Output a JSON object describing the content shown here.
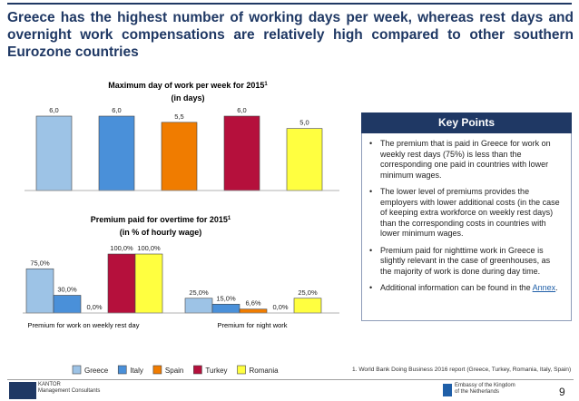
{
  "headline": "Greece has the highest number of working days per week, whereas rest days and overnight work compensations are relatively high compared to other southern Eurozone countries",
  "legend": [
    {
      "name": "Greece",
      "color": "#9dc3e6"
    },
    {
      "name": "Italy",
      "color": "#4a90d9"
    },
    {
      "name": "Spain",
      "color": "#f07c00"
    },
    {
      "name": "Turkey",
      "color": "#b5103c"
    },
    {
      "name": "Romania",
      "color": "#ffff40"
    }
  ],
  "chart_data": [
    {
      "type": "bar",
      "title": "Maximum day of work per week for 2015",
      "title_superscript": "1",
      "subtitle": "(in days)",
      "categories": [
        "Greece",
        "Italy",
        "Spain",
        "Turkey",
        "Romania"
      ],
      "values": [
        6.0,
        6.0,
        5.5,
        6.0,
        5.0
      ],
      "value_labels": [
        "6,0",
        "6,0",
        "5,5",
        "6,0",
        "5,0"
      ],
      "colors": [
        "#9dc3e6",
        "#4a90d9",
        "#f07c00",
        "#b5103c",
        "#ffff40"
      ],
      "ylim": [
        0,
        6.0
      ]
    },
    {
      "type": "bar",
      "title": "Premium paid for overtime for 2015",
      "title_superscript": "1",
      "subtitle": "(in % of hourly wage)",
      "categories": [
        "Premium for work on weekly rest day",
        "Premium for night work"
      ],
      "series": [
        {
          "name": "Greece",
          "values": [
            75.0,
            25.0
          ],
          "labels": [
            "75,0%",
            "25,0%"
          ]
        },
        {
          "name": "Italy",
          "values": [
            30.0,
            15.0
          ],
          "labels": [
            "30,0%",
            "15,0%"
          ]
        },
        {
          "name": "Spain",
          "values": [
            0.0,
            6.6
          ],
          "labels": [
            "0,0%",
            "6,6%"
          ]
        },
        {
          "name": "Turkey",
          "values": [
            100.0,
            0.0
          ],
          "labels": [
            "100,0%",
            "0,0%"
          ]
        },
        {
          "name": "Romania",
          "values": [
            100.0,
            25.0
          ],
          "labels": [
            "100,0%",
            "25,0%"
          ]
        }
      ],
      "ylim": [
        0,
        100
      ]
    }
  ],
  "key_points": {
    "title": "Key Points",
    "bullet": "•",
    "items": [
      "The premium that is paid in Greece for work on weekly rest days (75%) is less than the corresponding one paid in countries with lower minimum wages.",
      "The lower level of premiums provides the employers with lower additional costs (in the case of keeping extra workforce on weekly rest days) than the corresponding costs in countries with lower minimum wages.",
      "Premium paid for nighttime work in Greece is slightly relevant in the case of greenhouses, as the majority of work is done during day time."
    ],
    "last_item_text": "Additional information can be found in the",
    "last_item_link": "Annex",
    "last_item_end": "."
  },
  "footnote": "1. World Bank Doing Business 2016 report (Greece, Turkey, Romania, Italy, Spain)",
  "footer": {
    "company_line1": "KANTOR",
    "company_line2": "Management Consultants",
    "embassy_line1": "Embassy of the Kingdom",
    "embassy_line2": "of the Netherlands",
    "page_number": "9"
  }
}
